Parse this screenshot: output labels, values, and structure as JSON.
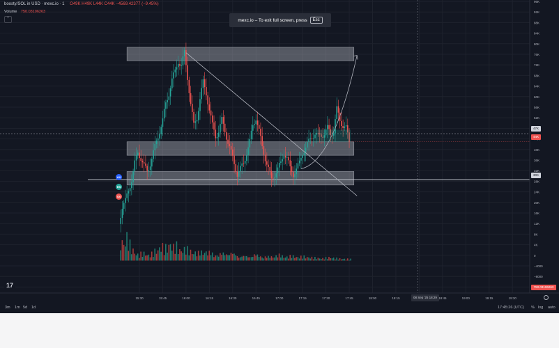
{
  "header": {
    "symbol": "boosty/SOL in USD · mexc.io · 1",
    "ohlc": "O49K H49K L44K C44K −4569.42377 (−9.45%)"
  },
  "volume": {
    "label": "Volume",
    "value": "750.03106263"
  },
  "toast": {
    "text": "mexc.io – To exit full screen, press",
    "key": "Esc"
  },
  "badges": [
    "AX",
    "EB",
    "SX"
  ],
  "price_axis": {
    "ticks": [
      "96K",
      "92K",
      "88K",
      "84K",
      "80K",
      "76K",
      "72K",
      "68K",
      "64K",
      "60K",
      "56K",
      "52K",
      "48K",
      "44K",
      "40K",
      "36K",
      "32K",
      "28K",
      "24K",
      "20K",
      "16K",
      "12K",
      "8K",
      "4K",
      "0",
      "−4000",
      "−8000",
      "−12000"
    ],
    "current_label": "47K",
    "last_label": "44K",
    "line_label": "30K",
    "volume_label": "750.03106263"
  },
  "time_axis": {
    "ticks": [
      "15:30",
      "15:45",
      "16:00",
      "16:15",
      "16:30",
      "16:45",
      "17:00",
      "17:15",
      "17:30",
      "17:45",
      "18:00",
      "18:15",
      "18:30",
      "18:45",
      "19:00",
      "19:15",
      "19:30"
    ],
    "highlight": "08 Sep '25   18:29"
  },
  "bottom_bar": {
    "timeframes": [
      "3m",
      "1m",
      "5d",
      "1d"
    ],
    "clock": "17:45:26 (UTC)",
    "options": [
      "%",
      "log",
      "auto"
    ]
  },
  "colors": {
    "bg": "#131722",
    "up": "#26a69a",
    "down": "#ef5350",
    "grid": "#1e222d",
    "zone": "#d1d4dc",
    "text": "#b2b5be"
  },
  "chart_data": {
    "type": "candlestick",
    "x_range": [
      "15:20",
      "19:35"
    ],
    "ylim": [
      -12000,
      96000
    ],
    "price_path": [
      [
        "15:18",
        14000
      ],
      [
        "15:20",
        20000
      ],
      [
        "15:22",
        22000
      ],
      [
        "15:24",
        26000
      ],
      [
        "15:26",
        30000
      ],
      [
        "15:28",
        36000
      ],
      [
        "15:30",
        40000
      ],
      [
        "15:32",
        38000
      ],
      [
        "15:34",
        35000
      ],
      [
        "15:36",
        33000
      ],
      [
        "15:38",
        36000
      ],
      [
        "15:40",
        40000
      ],
      [
        "15:42",
        44000
      ],
      [
        "15:44",
        48000
      ],
      [
        "15:46",
        52000
      ],
      [
        "15:48",
        58000
      ],
      [
        "15:50",
        62000
      ],
      [
        "15:52",
        67000
      ],
      [
        "15:54",
        70000
      ],
      [
        "15:56",
        74000
      ],
      [
        "15:58",
        72000
      ],
      [
        "16:00",
        77000
      ],
      [
        "16:02",
        68000
      ],
      [
        "16:04",
        58000
      ],
      [
        "16:06",
        50000
      ],
      [
        "16:08",
        53000
      ],
      [
        "16:10",
        60000
      ],
      [
        "16:12",
        66000
      ],
      [
        "16:14",
        62000
      ],
      [
        "16:16",
        56000
      ],
      [
        "16:18",
        50000
      ],
      [
        "16:20",
        46000
      ],
      [
        "16:22",
        48000
      ],
      [
        "16:24",
        52000
      ],
      [
        "16:26",
        48000
      ],
      [
        "16:28",
        44000
      ],
      [
        "16:30",
        40000
      ],
      [
        "16:32",
        36000
      ],
      [
        "16:34",
        32000
      ],
      [
        "16:36",
        34000
      ],
      [
        "16:38",
        36000
      ],
      [
        "16:40",
        40000
      ],
      [
        "16:42",
        44000
      ],
      [
        "16:44",
        50000
      ],
      [
        "16:46",
        53000
      ],
      [
        "16:48",
        48000
      ],
      [
        "16:50",
        42000
      ],
      [
        "16:52",
        38000
      ],
      [
        "16:54",
        34000
      ],
      [
        "16:56",
        30000
      ],
      [
        "16:58",
        32000
      ],
      [
        "17:00",
        34000
      ],
      [
        "17:02",
        36000
      ],
      [
        "17:04",
        40000
      ],
      [
        "17:06",
        38000
      ],
      [
        "17:08",
        34000
      ],
      [
        "17:10",
        32000
      ],
      [
        "17:12",
        34000
      ],
      [
        "17:14",
        36000
      ],
      [
        "17:16",
        40000
      ],
      [
        "17:18",
        42000
      ],
      [
        "17:20",
        44000
      ],
      [
        "17:22",
        46000
      ],
      [
        "17:24",
        47000
      ],
      [
        "17:26",
        46000
      ],
      [
        "17:28",
        46500
      ],
      [
        "17:30",
        47000
      ],
      [
        "17:32",
        49000
      ],
      [
        "17:34",
        47000
      ],
      [
        "17:36",
        48000
      ],
      [
        "17:38",
        56000
      ],
      [
        "17:40",
        52000
      ],
      [
        "17:42",
        50000
      ],
      [
        "17:44",
        49000
      ],
      [
        "17:46",
        44000
      ]
    ],
    "volume_path": [
      [
        "15:18",
        8000
      ],
      [
        "15:20",
        7000
      ],
      [
        "15:22",
        9000
      ],
      [
        "15:24",
        6000
      ],
      [
        "15:26",
        4000
      ],
      [
        "15:28",
        2500
      ],
      [
        "15:30",
        2000
      ],
      [
        "15:32",
        3000
      ],
      [
        "15:34",
        2500
      ],
      [
        "15:36",
        2000
      ],
      [
        "15:38",
        2500
      ],
      [
        "15:40",
        3500
      ],
      [
        "15:42",
        4000
      ],
      [
        "15:44",
        5500
      ],
      [
        "15:46",
        4500
      ],
      [
        "15:48",
        5000
      ],
      [
        "15:50",
        6500
      ],
      [
        "15:52",
        5000
      ],
      [
        "15:54",
        5500
      ],
      [
        "15:56",
        4000
      ],
      [
        "16:00",
        4500
      ],
      [
        "16:04",
        3500
      ],
      [
        "16:08",
        3000
      ],
      [
        "16:12",
        4000
      ],
      [
        "16:16",
        3000
      ],
      [
        "16:20",
        2500
      ],
      [
        "16:24",
        3000
      ],
      [
        "16:28",
        3500
      ],
      [
        "16:32",
        2500
      ],
      [
        "16:36",
        2000
      ],
      [
        "16:40",
        1800
      ],
      [
        "16:44",
        2500
      ],
      [
        "16:48",
        2000
      ],
      [
        "16:52",
        1500
      ],
      [
        "16:56",
        1800
      ],
      [
        "17:00",
        2200
      ],
      [
        "17:04",
        1500
      ],
      [
        "17:08",
        1800
      ],
      [
        "17:12",
        1400
      ],
      [
        "17:16",
        1500
      ],
      [
        "17:20",
        1200
      ],
      [
        "17:24",
        1000
      ],
      [
        "17:28",
        800
      ],
      [
        "17:32",
        1200
      ],
      [
        "17:36",
        900
      ],
      [
        "17:40",
        700
      ],
      [
        "17:46",
        600
      ]
    ],
    "zones": [
      {
        "from": "15:22",
        "to": "17:48",
        "low": 74000,
        "high": 79000
      },
      {
        "from": "15:22",
        "to": "17:48",
        "low": 39000,
        "high": 44000
      },
      {
        "from": "15:22",
        "to": "17:48",
        "low": 28000,
        "high": 33000
      }
    ],
    "horizontal_lines": [
      {
        "price": 30000,
        "label": "30K"
      },
      {
        "price": 47000,
        "label": "47K",
        "dashed": true
      }
    ],
    "trendline": [
      [
        "16:00",
        77000
      ],
      [
        "17:50",
        24000
      ]
    ],
    "projection_arrow": [
      [
        "17:14",
        34000
      ],
      [
        "17:50",
        76000
      ]
    ],
    "last_price": 44000
  }
}
